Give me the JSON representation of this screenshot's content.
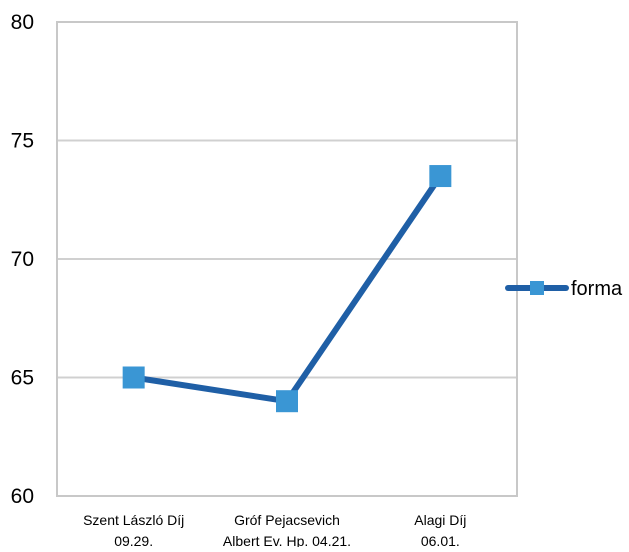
{
  "chart_data": {
    "type": "line",
    "categories": [
      [
        "Szent László Díj",
        "09.29."
      ],
      [
        "Gróf Pejacsevich",
        "Albert Ev. Hp. 04.21."
      ],
      [
        "Alagi Díj",
        "06.01."
      ]
    ],
    "series": [
      {
        "name": "forma",
        "values": [
          65,
          64,
          73.5
        ],
        "line_color": "#1f5fa6",
        "marker": "square",
        "marker_color": "#3a96d4"
      }
    ],
    "yticks": [
      "60",
      "65",
      "70",
      "75",
      "80"
    ],
    "ylim": [
      60,
      80
    ],
    "grid": "horizontal",
    "legend_position": "right",
    "title": "",
    "xlabel": "",
    "ylabel": "",
    "colors": {
      "grid": "#d0d0d0",
      "frame": "#c8c8c8"
    }
  }
}
